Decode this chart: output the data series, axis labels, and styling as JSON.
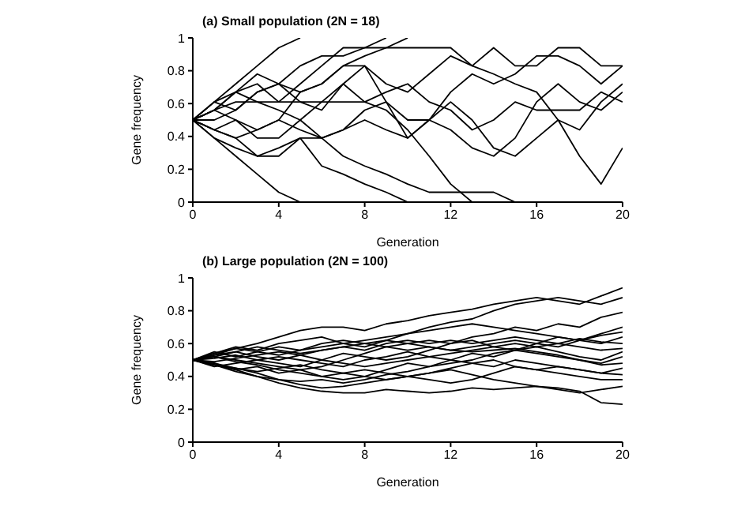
{
  "chart_data": [
    {
      "type": "line",
      "title": "(a) Small population (2N = 18)",
      "xlabel": "Generation",
      "ylabel": "Gene frequency",
      "x": [
        0,
        1,
        2,
        3,
        4,
        5,
        6,
        7,
        8,
        9,
        10,
        11,
        12,
        13,
        14,
        15,
        16,
        17,
        18,
        19,
        20
      ],
      "xlim": [
        0,
        20
      ],
      "ylim": [
        0,
        1
      ],
      "xticks": [
        0,
        4,
        8,
        12,
        16,
        20
      ],
      "yticks": [
        0,
        0.2,
        0.4,
        0.6,
        0.8,
        1
      ],
      "series": [
        {
          "color": "#000000",
          "values": [
            0.5,
            0.61,
            0.72,
            0.83,
            0.94,
            1,
            null,
            null,
            null,
            null,
            null,
            null,
            null,
            null,
            null,
            null,
            null,
            null,
            null,
            null,
            null
          ]
        },
        {
          "color": "#000000",
          "values": [
            0.5,
            0.39,
            0.28,
            0.17,
            0.06,
            0,
            null,
            null,
            null,
            null,
            null,
            null,
            null,
            null,
            null,
            null,
            null,
            null,
            null,
            null,
            null
          ]
        },
        {
          "color": "#000000",
          "values": [
            0.5,
            0.44,
            0.39,
            0.28,
            0.28,
            0.39,
            0.22,
            0.17,
            0.11,
            0.06,
            0,
            null,
            null,
            null,
            null,
            null,
            null,
            null,
            null,
            null,
            null
          ]
        },
        {
          "color": "#000000",
          "values": [
            0.5,
            0.56,
            0.67,
            0.72,
            0.61,
            0.72,
            0.83,
            0.94,
            0.94,
            0.94,
            0.94,
            0.94,
            0.94,
            0.83,
            0.94,
            0.83,
            0.83,
            0.94,
            0.94,
            0.83,
            0.83
          ]
        },
        {
          "color": "#000000",
          "values": [
            0.5,
            0.61,
            0.56,
            0.67,
            0.72,
            0.61,
            0.56,
            0.72,
            0.83,
            0.61,
            0.39,
            0.5,
            0.61,
            0.5,
            0.33,
            0.28,
            0.39,
            0.5,
            0.28,
            0.11,
            0.33
          ]
        },
        {
          "color": "#000000",
          "values": [
            0.5,
            0.44,
            0.5,
            0.39,
            0.39,
            0.5,
            0.61,
            0.72,
            0.61,
            0.56,
            0.44,
            0.28,
            0.11,
            0,
            null,
            null,
            null,
            null,
            null,
            null,
            null
          ]
        },
        {
          "color": "#000000",
          "values": [
            0.5,
            0.56,
            0.61,
            0.61,
            0.61,
            0.61,
            0.61,
            0.61,
            0.61,
            0.67,
            0.72,
            0.61,
            0.56,
            0.44,
            0.5,
            0.61,
            0.56,
            0.56,
            0.56,
            0.67,
            0.61
          ]
        },
        {
          "color": "#000000",
          "values": [
            0.5,
            0.39,
            0.33,
            0.28,
            0.33,
            0.39,
            0.39,
            0.28,
            0.22,
            0.17,
            0.11,
            0.06,
            0.06,
            0.06,
            0.06,
            0,
            null,
            null,
            null,
            null,
            null
          ]
        },
        {
          "color": "#000000",
          "values": [
            0.5,
            0.56,
            0.5,
            0.44,
            0.5,
            0.67,
            0.72,
            0.83,
            0.89,
            0.94,
            1,
            null,
            null,
            null,
            null,
            null,
            null,
            null,
            null,
            null,
            null
          ]
        },
        {
          "color": "#000000",
          "values": [
            0.5,
            0.5,
            0.56,
            0.67,
            0.72,
            0.67,
            0.72,
            0.83,
            0.83,
            0.72,
            0.67,
            0.78,
            0.89,
            0.83,
            0.78,
            0.72,
            0.67,
            0.5,
            0.44,
            0.61,
            0.72
          ]
        },
        {
          "color": "#000000",
          "values": [
            0.5,
            0.44,
            0.39,
            0.44,
            0.5,
            0.44,
            0.39,
            0.44,
            0.56,
            0.61,
            0.5,
            0.5,
            0.44,
            0.33,
            0.28,
            0.39,
            0.61,
            0.72,
            0.61,
            0.56,
            0.67
          ]
        },
        {
          "color": "#000000",
          "values": [
            0.5,
            0.61,
            0.67,
            0.78,
            0.72,
            0.83,
            0.89,
            0.89,
            0.94,
            1,
            null,
            null,
            null,
            null,
            null,
            null,
            null,
            null,
            null,
            null,
            null
          ]
        },
        {
          "color": "#000000",
          "values": [
            0.5,
            0.56,
            0.67,
            0.61,
            0.56,
            0.5,
            0.39,
            0.44,
            0.5,
            0.44,
            0.39,
            0.5,
            0.67,
            0.78,
            0.72,
            0.78,
            0.89,
            0.89,
            0.83,
            0.72,
            0.83
          ]
        }
      ]
    },
    {
      "type": "line",
      "title": "(b) Large population (2N = 100)",
      "xlabel": "Generation",
      "ylabel": "Gene frequency",
      "x": [
        0,
        1,
        2,
        3,
        4,
        5,
        6,
        7,
        8,
        9,
        10,
        11,
        12,
        13,
        14,
        15,
        16,
        17,
        18,
        19,
        20
      ],
      "xlim": [
        0,
        20
      ],
      "ylim": [
        0,
        1
      ],
      "xticks": [
        0,
        4,
        8,
        12,
        16,
        20
      ],
      "yticks": [
        0,
        0.2,
        0.4,
        0.6,
        0.8,
        1
      ],
      "series": [
        {
          "color": "#000000",
          "values": [
            0.5,
            0.53,
            0.57,
            0.6,
            0.64,
            0.68,
            0.7,
            0.7,
            0.68,
            0.72,
            0.74,
            0.77,
            0.79,
            0.81,
            0.84,
            0.86,
            0.88,
            0.86,
            0.84,
            0.89,
            0.94
          ]
        },
        {
          "color": "#000000",
          "values": [
            0.5,
            0.48,
            0.45,
            0.42,
            0.38,
            0.35,
            0.33,
            0.34,
            0.36,
            0.38,
            0.4,
            0.42,
            0.44,
            0.41,
            0.38,
            0.36,
            0.34,
            0.32,
            0.3,
            0.32,
            0.34
          ]
        },
        {
          "color": "#000000",
          "values": [
            0.5,
            0.47,
            0.43,
            0.4,
            0.36,
            0.33,
            0.31,
            0.3,
            0.3,
            0.32,
            0.31,
            0.3,
            0.31,
            0.33,
            0.32,
            0.33,
            0.34,
            0.33,
            0.31,
            0.24,
            0.23
          ]
        },
        {
          "color": "#000000",
          "values": [
            0.5,
            0.54,
            0.58,
            0.56,
            0.6,
            0.62,
            0.64,
            0.6,
            0.58,
            0.62,
            0.66,
            0.7,
            0.73,
            0.75,
            0.8,
            0.84,
            0.86,
            0.88,
            0.86,
            0.84,
            0.88
          ]
        },
        {
          "color": "#000000",
          "values": [
            0.5,
            0.52,
            0.5,
            0.48,
            0.46,
            0.44,
            0.46,
            0.5,
            0.54,
            0.58,
            0.6,
            0.62,
            0.6,
            0.64,
            0.66,
            0.7,
            0.68,
            0.72,
            0.7,
            0.76,
            0.79
          ]
        },
        {
          "color": "#000000",
          "values": [
            0.5,
            0.47,
            0.44,
            0.46,
            0.42,
            0.44,
            0.4,
            0.38,
            0.4,
            0.44,
            0.48,
            0.46,
            0.5,
            0.54,
            0.52,
            0.56,
            0.6,
            0.58,
            0.62,
            0.66,
            0.7
          ]
        },
        {
          "color": "#000000",
          "values": [
            0.5,
            0.55,
            0.52,
            0.55,
            0.58,
            0.56,
            0.6,
            0.62,
            0.6,
            0.58,
            0.56,
            0.58,
            0.56,
            0.58,
            0.6,
            0.62,
            0.6,
            0.64,
            0.62,
            0.6,
            0.64
          ]
        },
        {
          "color": "#000000",
          "values": [
            0.5,
            0.46,
            0.48,
            0.5,
            0.52,
            0.5,
            0.48,
            0.46,
            0.5,
            0.52,
            0.55,
            0.52,
            0.5,
            0.48,
            0.46,
            0.5,
            0.48,
            0.46,
            0.44,
            0.42,
            0.41
          ]
        },
        {
          "color": "#000000",
          "values": [
            0.5,
            0.53,
            0.55,
            0.52,
            0.5,
            0.53,
            0.56,
            0.58,
            0.6,
            0.62,
            0.6,
            0.58,
            0.56,
            0.55,
            0.56,
            0.57,
            0.55,
            0.53,
            0.5,
            0.47,
            0.48
          ]
        },
        {
          "color": "#000000",
          "values": [
            0.5,
            0.48,
            0.44,
            0.4,
            0.38,
            0.37,
            0.38,
            0.36,
            0.38,
            0.41,
            0.43,
            0.46,
            0.48,
            0.5,
            0.54,
            0.56,
            0.58,
            0.55,
            0.52,
            0.5,
            0.55
          ]
        },
        {
          "color": "#000000",
          "values": [
            0.5,
            0.51,
            0.53,
            0.5,
            0.48,
            0.46,
            0.5,
            0.54,
            0.52,
            0.5,
            0.52,
            0.56,
            0.6,
            0.62,
            0.58,
            0.56,
            0.54,
            0.52,
            0.5,
            0.48,
            0.52
          ]
        },
        {
          "color": "#000000",
          "values": [
            0.5,
            0.52,
            0.49,
            0.47,
            0.44,
            0.42,
            0.4,
            0.42,
            0.44,
            0.42,
            0.4,
            0.38,
            0.36,
            0.38,
            0.42,
            0.46,
            0.44,
            0.42,
            0.4,
            0.38,
            0.38
          ]
        },
        {
          "color": "#000000",
          "values": [
            0.5,
            0.54,
            0.57,
            0.55,
            0.53,
            0.56,
            0.58,
            0.6,
            0.62,
            0.64,
            0.66,
            0.68,
            0.7,
            0.72,
            0.7,
            0.68,
            0.66,
            0.64,
            0.62,
            0.65,
            0.67
          ]
        },
        {
          "color": "#000000",
          "values": [
            0.5,
            0.49,
            0.51,
            0.53,
            0.55,
            0.53,
            0.5,
            0.48,
            0.46,
            0.48,
            0.5,
            0.52,
            0.54,
            0.56,
            0.58,
            0.6,
            0.58,
            0.6,
            0.58,
            0.56,
            0.57
          ]
        },
        {
          "color": "#000000",
          "values": [
            0.5,
            0.47,
            0.45,
            0.43,
            0.45,
            0.47,
            0.44,
            0.42,
            0.4,
            0.38,
            0.4,
            0.42,
            0.45,
            0.48,
            0.5,
            0.46,
            0.44,
            0.46,
            0.44,
            0.42,
            0.45
          ]
        },
        {
          "color": "#000000",
          "values": [
            0.5,
            0.52,
            0.55,
            0.58,
            0.56,
            0.54,
            0.56,
            0.58,
            0.56,
            0.6,
            0.62,
            0.6,
            0.62,
            0.6,
            0.62,
            0.64,
            0.62,
            0.6,
            0.63,
            0.61,
            0.6
          ]
        }
      ]
    }
  ]
}
